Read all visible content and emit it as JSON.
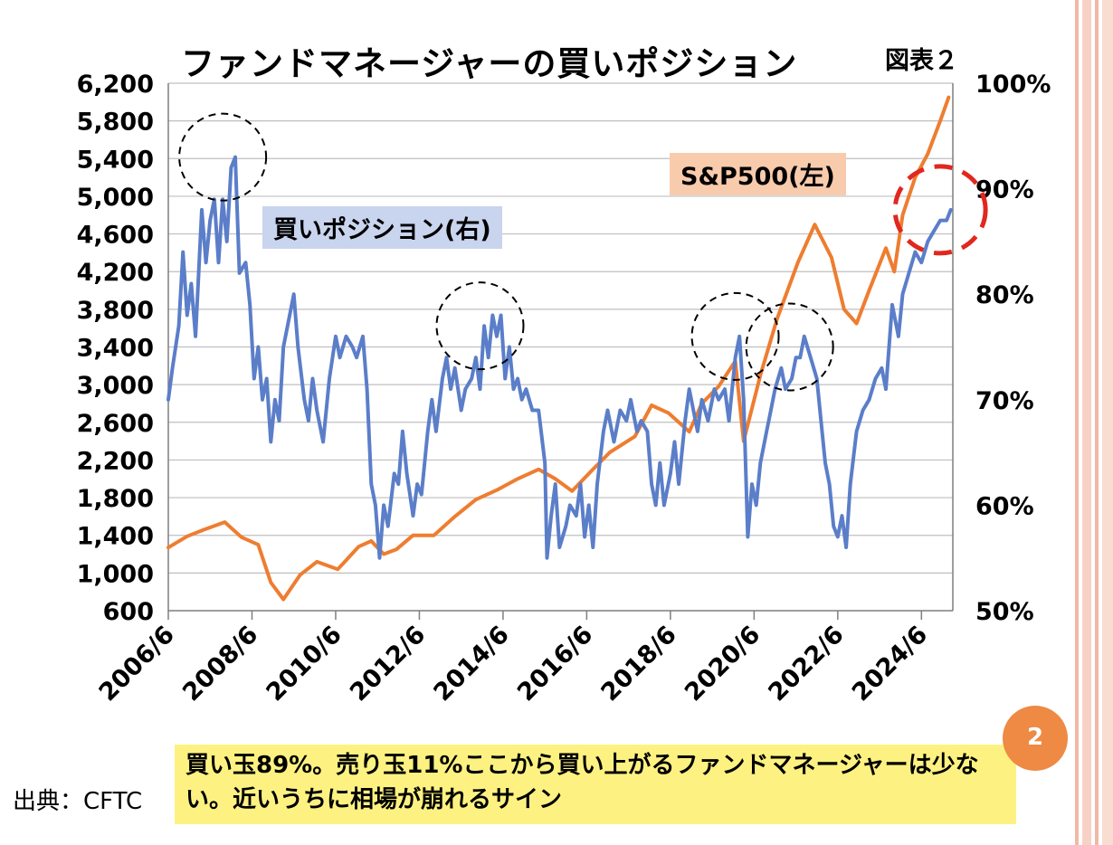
{
  "title": "ファンドマネージャーの買いポジション",
  "figure_label": "図表２",
  "series_labels": {
    "buy_position": "買いポジション(右)",
    "sp500": "S&P500(左)"
  },
  "source": "出典：CFTC",
  "note": "買い玉89%。売り玉11%ここから買い上がるファンドマネージャーは少ない。近いうちに相場が崩れるサイン",
  "page_number": "2",
  "colors": {
    "buy_position": "#5b7ec9",
    "sp500": "#ee7d31",
    "buy_label_bg": "#c9d4ee",
    "sp500_label_bg": "#f8cbad",
    "note_bg": "#fdf281",
    "highlight_circle": "#e0281e",
    "page_badge": "#ee8a43",
    "stripe": "#f2b8a5"
  },
  "chart_data": {
    "type": "line",
    "x_ticks": [
      "2006/6",
      "2008/6",
      "2010/6",
      "2012/6",
      "2014/6",
      "2016/6",
      "2018/6",
      "2020/6",
      "2022/6",
      "2024/6"
    ],
    "left_axis": {
      "ticks": [
        "600",
        "1,000",
        "1,400",
        "1,800",
        "2,200",
        "2,600",
        "3,000",
        "3,400",
        "3,800",
        "4,200",
        "4,600",
        "5,000",
        "5,400",
        "5,800",
        "6,200"
      ],
      "ylim": [
        600,
        6200
      ]
    },
    "right_axis": {
      "ticks": [
        "50%",
        "60%",
        "70%",
        "80%",
        "90%",
        "100%"
      ],
      "ylim": [
        50,
        100
      ]
    },
    "grid": "horizontal",
    "series": [
      {
        "name": "S&P500(左)",
        "axis": "left",
        "points": [
          [
            2006.45,
            1270
          ],
          [
            2006.9,
            1390
          ],
          [
            2007.3,
            1460
          ],
          [
            2007.8,
            1540
          ],
          [
            2008.2,
            1380
          ],
          [
            2008.6,
            1300
          ],
          [
            2008.9,
            900
          ],
          [
            2009.2,
            720
          ],
          [
            2009.6,
            980
          ],
          [
            2010.0,
            1120
          ],
          [
            2010.5,
            1040
          ],
          [
            2011.0,
            1280
          ],
          [
            2011.3,
            1340
          ],
          [
            2011.6,
            1200
          ],
          [
            2011.9,
            1250
          ],
          [
            2012.3,
            1400
          ],
          [
            2012.8,
            1400
          ],
          [
            2013.3,
            1600
          ],
          [
            2013.8,
            1780
          ],
          [
            2014.3,
            1880
          ],
          [
            2014.8,
            2000
          ],
          [
            2015.3,
            2100
          ],
          [
            2015.7,
            2000
          ],
          [
            2016.1,
            1870
          ],
          [
            2016.6,
            2100
          ],
          [
            2017.0,
            2280
          ],
          [
            2017.6,
            2450
          ],
          [
            2018.0,
            2780
          ],
          [
            2018.4,
            2700
          ],
          [
            2018.9,
            2500
          ],
          [
            2019.2,
            2800
          ],
          [
            2019.6,
            2980
          ],
          [
            2020.0,
            3250
          ],
          [
            2020.2,
            2400
          ],
          [
            2020.6,
            3100
          ],
          [
            2021.0,
            3700
          ],
          [
            2021.5,
            4300
          ],
          [
            2021.9,
            4700
          ],
          [
            2022.3,
            4350
          ],
          [
            2022.6,
            3800
          ],
          [
            2022.9,
            3650
          ],
          [
            2023.2,
            4000
          ],
          [
            2023.6,
            4450
          ],
          [
            2023.8,
            4200
          ],
          [
            2024.0,
            4800
          ],
          [
            2024.3,
            5200
          ],
          [
            2024.6,
            5450
          ],
          [
            2024.9,
            5800
          ],
          [
            2025.1,
            6050
          ]
        ]
      },
      {
        "name": "買いポジション(右)",
        "axis": "right",
        "points": [
          [
            2006.45,
            70
          ],
          [
            2006.55,
            73
          ],
          [
            2006.7,
            77
          ],
          [
            2006.8,
            84
          ],
          [
            2006.9,
            78
          ],
          [
            2007.0,
            81
          ],
          [
            2007.1,
            76
          ],
          [
            2007.25,
            88
          ],
          [
            2007.35,
            83
          ],
          [
            2007.45,
            87
          ],
          [
            2007.55,
            89
          ],
          [
            2007.65,
            83
          ],
          [
            2007.75,
            89
          ],
          [
            2007.85,
            85
          ],
          [
            2007.95,
            92
          ],
          [
            2008.05,
            93
          ],
          [
            2008.15,
            82
          ],
          [
            2008.3,
            83
          ],
          [
            2008.4,
            79
          ],
          [
            2008.5,
            72
          ],
          [
            2008.6,
            75
          ],
          [
            2008.7,
            70
          ],
          [
            2008.8,
            72
          ],
          [
            2008.9,
            66
          ],
          [
            2009.0,
            70
          ],
          [
            2009.1,
            68
          ],
          [
            2009.2,
            75
          ],
          [
            2009.3,
            77
          ],
          [
            2009.45,
            80
          ],
          [
            2009.55,
            75
          ],
          [
            2009.7,
            70
          ],
          [
            2009.8,
            68
          ],
          [
            2009.9,
            72
          ],
          [
            2010.0,
            69
          ],
          [
            2010.15,
            66
          ],
          [
            2010.3,
            72
          ],
          [
            2010.45,
            76
          ],
          [
            2010.55,
            74
          ],
          [
            2010.7,
            76
          ],
          [
            2010.85,
            75
          ],
          [
            2010.95,
            74
          ],
          [
            2011.1,
            76
          ],
          [
            2011.2,
            71
          ],
          [
            2011.3,
            62
          ],
          [
            2011.4,
            60
          ],
          [
            2011.5,
            55
          ],
          [
            2011.6,
            60
          ],
          [
            2011.7,
            58
          ],
          [
            2011.85,
            63
          ],
          [
            2011.95,
            62
          ],
          [
            2012.05,
            67
          ],
          [
            2012.15,
            63
          ],
          [
            2012.3,
            59
          ],
          [
            2012.4,
            62
          ],
          [
            2012.5,
            61
          ],
          [
            2012.65,
            67
          ],
          [
            2012.75,
            70
          ],
          [
            2012.85,
            67
          ],
          [
            2013.0,
            72
          ],
          [
            2013.1,
            74
          ],
          [
            2013.2,
            71
          ],
          [
            2013.3,
            73
          ],
          [
            2013.45,
            69
          ],
          [
            2013.55,
            71
          ],
          [
            2013.7,
            72
          ],
          [
            2013.8,
            74
          ],
          [
            2013.9,
            71
          ],
          [
            2014.0,
            77
          ],
          [
            2014.1,
            74
          ],
          [
            2014.2,
            78
          ],
          [
            2014.3,
            76
          ],
          [
            2014.4,
            78
          ],
          [
            2014.5,
            72
          ],
          [
            2014.6,
            75
          ],
          [
            2014.7,
            71
          ],
          [
            2014.8,
            72
          ],
          [
            2014.9,
            70
          ],
          [
            2015.0,
            71
          ],
          [
            2015.15,
            69
          ],
          [
            2015.3,
            69
          ],
          [
            2015.45,
            64
          ],
          [
            2015.5,
            55
          ],
          [
            2015.6,
            59
          ],
          [
            2015.7,
            62
          ],
          [
            2015.8,
            56
          ],
          [
            2015.95,
            58
          ],
          [
            2016.05,
            60
          ],
          [
            2016.2,
            59
          ],
          [
            2016.3,
            62
          ],
          [
            2016.4,
            57
          ],
          [
            2016.5,
            60
          ],
          [
            2016.6,
            56
          ],
          [
            2016.7,
            62
          ],
          [
            2016.85,
            67
          ],
          [
            2016.95,
            69
          ],
          [
            2017.1,
            66
          ],
          [
            2017.25,
            69
          ],
          [
            2017.4,
            68
          ],
          [
            2017.5,
            70
          ],
          [
            2017.65,
            67
          ],
          [
            2017.75,
            68
          ],
          [
            2017.9,
            67
          ],
          [
            2018.0,
            62
          ],
          [
            2018.1,
            60
          ],
          [
            2018.2,
            64
          ],
          [
            2018.3,
            60
          ],
          [
            2018.45,
            63
          ],
          [
            2018.55,
            66
          ],
          [
            2018.65,
            62
          ],
          [
            2018.8,
            68
          ],
          [
            2018.9,
            71
          ],
          [
            2019.0,
            69
          ],
          [
            2019.1,
            67
          ],
          [
            2019.2,
            70
          ],
          [
            2019.35,
            68
          ],
          [
            2019.5,
            71
          ],
          [
            2019.6,
            70
          ],
          [
            2019.75,
            71
          ],
          [
            2019.85,
            68
          ],
          [
            2020.0,
            74
          ],
          [
            2020.1,
            76
          ],
          [
            2020.2,
            70
          ],
          [
            2020.3,
            57
          ],
          [
            2020.4,
            62
          ],
          [
            2020.5,
            60
          ],
          [
            2020.6,
            64
          ],
          [
            2020.75,
            67
          ],
          [
            2020.85,
            69
          ],
          [
            2020.95,
            71
          ],
          [
            2021.1,
            73
          ],
          [
            2021.2,
            71
          ],
          [
            2021.35,
            72
          ],
          [
            2021.45,
            74
          ],
          [
            2021.55,
            74
          ],
          [
            2021.65,
            76
          ],
          [
            2021.8,
            74
          ],
          [
            2021.95,
            72
          ],
          [
            2022.05,
            68
          ],
          [
            2022.15,
            64
          ],
          [
            2022.25,
            62
          ],
          [
            2022.35,
            58
          ],
          [
            2022.45,
            57
          ],
          [
            2022.55,
            59
          ],
          [
            2022.65,
            56
          ],
          [
            2022.75,
            62
          ],
          [
            2022.9,
            67
          ],
          [
            2023.05,
            69
          ],
          [
            2023.2,
            70
          ],
          [
            2023.35,
            72
          ],
          [
            2023.5,
            73
          ],
          [
            2023.6,
            71
          ],
          [
            2023.75,
            79
          ],
          [
            2023.9,
            76
          ],
          [
            2024.0,
            80
          ],
          [
            2024.15,
            82
          ],
          [
            2024.3,
            84
          ],
          [
            2024.45,
            83
          ],
          [
            2024.6,
            85
          ],
          [
            2024.75,
            86
          ],
          [
            2024.9,
            87
          ],
          [
            2025.05,
            87
          ],
          [
            2025.15,
            88
          ]
        ]
      }
    ],
    "annotations": [
      "dashed circles marking 2008, 2014, 2020, 2021 peaks",
      "red dashed circle marking latest (2025) level"
    ]
  }
}
